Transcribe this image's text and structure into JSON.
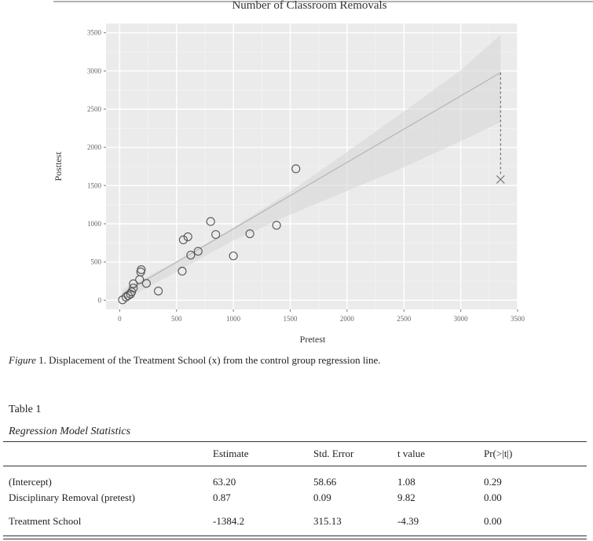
{
  "figure": {
    "caption_label": "Figure",
    "caption_text": " 1. Displacement of the Treatment School (x) from the control group regression line."
  },
  "chart_data": {
    "type": "scatter",
    "title": "Number of Classroom Removals",
    "xlabel": "Pretest",
    "ylabel": "Posttest",
    "xlim": [
      -120,
      3500
    ],
    "ylim": [
      -120,
      3620
    ],
    "xticks": [
      "0",
      "500",
      "1000",
      "1500",
      "2000",
      "2500",
      "3000",
      "3500"
    ],
    "yticks": [
      "0",
      "500",
      "1000",
      "1500",
      "2000",
      "2500",
      "3000",
      "3500"
    ],
    "grid": true,
    "points": [
      [
        25,
        5
      ],
      [
        55,
        40
      ],
      [
        75,
        60
      ],
      [
        95,
        80
      ],
      [
        105,
        110
      ],
      [
        120,
        160
      ],
      [
        120,
        215
      ],
      [
        175,
        270
      ],
      [
        185,
        370
      ],
      [
        190,
        400
      ],
      [
        235,
        220
      ],
      [
        340,
        120
      ],
      [
        550,
        380
      ],
      [
        560,
        790
      ],
      [
        600,
        830
      ],
      [
        625,
        590
      ],
      [
        690,
        640
      ],
      [
        800,
        1030
      ],
      [
        845,
        860
      ],
      [
        1000,
        580
      ],
      [
        1145,
        870
      ],
      [
        1380,
        980
      ],
      [
        1550,
        1720
      ]
    ],
    "regression_line": {
      "intercept": 63.2,
      "slope": 0.87,
      "x_start": 25,
      "x_end": 3350
    },
    "confidence_band": [
      [
        25,
        -10,
        140
      ],
      [
        500,
        370,
        510
      ],
      [
        1000,
        780,
        950
      ],
      [
        1500,
        1120,
        1420
      ],
      [
        2000,
        1430,
        1940
      ],
      [
        2500,
        1740,
        2470
      ],
      [
        3000,
        2080,
        3010
      ],
      [
        3350,
        2330,
        3470
      ]
    ],
    "treatment_school": {
      "x": 3350,
      "y": 1580,
      "marker": "x"
    }
  },
  "table": {
    "number": "Table 1",
    "title": "Regression Model Statistics",
    "headers": [
      "",
      "Estimate",
      "Std. Error",
      "t value",
      "Pr(>|t|)"
    ],
    "rows": [
      [
        "(Intercept)",
        "63.20",
        "58.66",
        "1.08",
        "0.29"
      ],
      [
        "Disciplinary Removal (pretest)",
        "0.87",
        "0.09",
        "9.82",
        "0.00"
      ],
      [
        "Treatment School",
        "-1384.2",
        "315.13",
        "-4.39",
        "0.00"
      ]
    ]
  }
}
